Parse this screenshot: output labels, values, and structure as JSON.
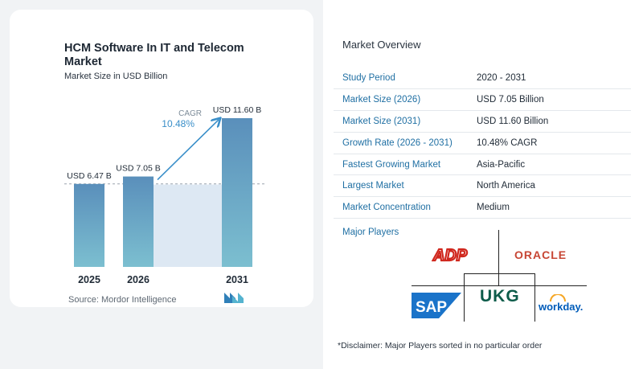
{
  "chart_data": {
    "type": "bar",
    "title": "HCM Software In IT and Telecom Market",
    "subtitle": "Market Size in USD Billion",
    "categories": [
      "2025",
      "2026",
      "2031"
    ],
    "values": [
      6.47,
      7.05,
      11.6
    ],
    "value_labels": [
      "USD 6.47 B",
      "USD 7.05 B",
      "USD 11.60 B"
    ],
    "cagr_label": "CAGR",
    "cagr_value": "10.48%",
    "grid": false,
    "colors": {
      "bar_top": "#5a8fbb",
      "bar_bottom": "#7cbfd0",
      "shade": "#dde8f3",
      "arrow": "#3a8fc9"
    }
  },
  "source_text": "Source: Mordor Intelligence",
  "overview": {
    "title": "Market Overview",
    "rows": [
      {
        "label": "Study Period",
        "value": "2020 - 2031"
      },
      {
        "label": "Market Size (2026)",
        "value": "USD 7.05 Billion"
      },
      {
        "label": "Market Size (2031)",
        "value": "USD 11.60 Billion"
      },
      {
        "label": "Growth Rate (2026 - 2031)",
        "value": "10.48% CAGR"
      },
      {
        "label": "Fastest Growing Market",
        "value": "Asia-Pacific"
      },
      {
        "label": "Largest Market",
        "value": "North America"
      },
      {
        "label": "Market Concentration",
        "value": "Medium"
      }
    ]
  },
  "players": {
    "title": "Major Players",
    "logos": [
      {
        "name": "ADP",
        "text": "ADP",
        "color": "#d0271d"
      },
      {
        "name": "Oracle",
        "text": "ORACLE",
        "color": "#c74634"
      },
      {
        "name": "SAP",
        "text": "SAP",
        "color": "#1a73c9"
      },
      {
        "name": "UKG",
        "text": "UKG",
        "color": "#0d5c4a"
      },
      {
        "name": "Workday",
        "text": "workday.",
        "color": "#005cb9"
      }
    ]
  },
  "disclaimer": "*Disclaimer: Major Players sorted in no particular order"
}
